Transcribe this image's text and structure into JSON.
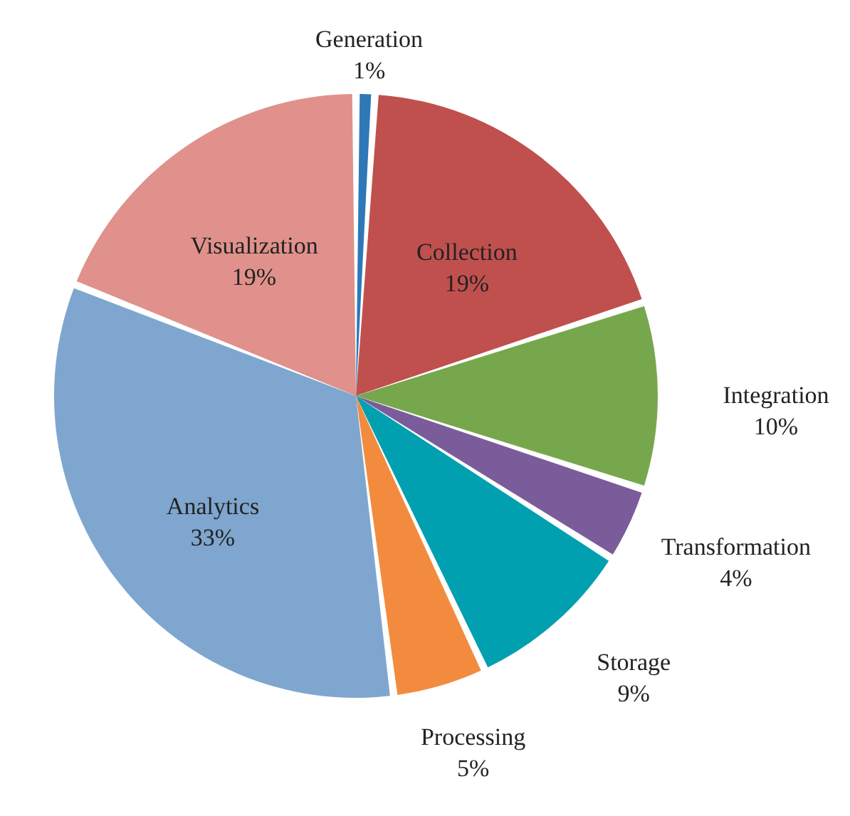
{
  "chart_data": {
    "type": "pie",
    "categories": [
      "Generation",
      "Collection",
      "Integration",
      "Transformation",
      "Storage",
      "Processing",
      "Analytics",
      "Visualization"
    ],
    "values": [
      1,
      19,
      10,
      4,
      9,
      5,
      33,
      19
    ],
    "value_labels": [
      "1%",
      "19%",
      "10%",
      "4%",
      "9%",
      "5%",
      "33%",
      "19%"
    ],
    "colors": [
      "#2e78b8",
      "#c0504d",
      "#77a74c",
      "#7b5c9a",
      "#00a0b0",
      "#f38b3e",
      "#7fa6cf",
      "#e0918b"
    ]
  }
}
